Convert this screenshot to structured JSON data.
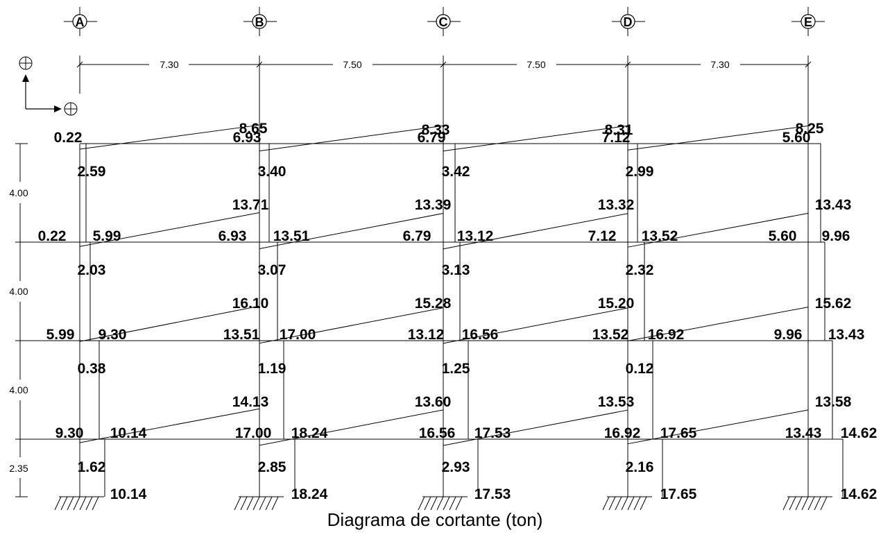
{
  "axes": [
    "A",
    "B",
    "C",
    "D",
    "E"
  ],
  "spans": [
    "7.30",
    "7.50",
    "7.50",
    "7.30"
  ],
  "story_heights": [
    "4.00",
    "4.00",
    "4.00",
    "2.35"
  ],
  "caption": "Diagrama de cortante (ton)",
  "beam_labels": {
    "top": [
      "8.65",
      "8.33",
      "8.31",
      "8.25"
    ],
    "bottom": [
      "2.59",
      "3.40",
      "3.42",
      "2.99",
      "2.03",
      "3.07",
      "3.13",
      "2.32",
      "0.38",
      "1.19",
      "1.25",
      "0.12",
      "1.62",
      "2.85",
      "2.93",
      "2.16"
    ],
    "top_lower_levels": [
      "13.71",
      "13.39",
      "13.32",
      "13.43",
      "16.10",
      "15.28",
      "15.20",
      "15.62",
      "14.13",
      "13.60",
      "13.53",
      "13.58"
    ]
  },
  "column_labels": {
    "level_roof": [
      "0.22",
      "6.93",
      "6.79",
      "7.12",
      "5.60"
    ],
    "level_3": [
      "0.22",
      "5.99",
      "6.93",
      "13.51",
      "6.79",
      "13.12",
      "7.12",
      "13.52",
      "5.60",
      "9.96"
    ],
    "level_2": [
      "5.99",
      "9.30",
      "13.51",
      "17.00",
      "13.12",
      "16.56",
      "13.52",
      "16.92",
      "9.96",
      "13.43"
    ],
    "level_1": [
      "9.30",
      "10.14",
      "17.00",
      "18.24",
      "16.56",
      "17.53",
      "16.92",
      "17.65",
      "13.43",
      "14.62"
    ],
    "base": [
      "10.14",
      "18.24",
      "17.53",
      "17.65",
      "14.62"
    ]
  },
  "chart_data": {
    "type": "shear_diagram",
    "title": "Diagrama de cortante (ton)",
    "unit": "ton",
    "axes": [
      "A",
      "B",
      "C",
      "D",
      "E"
    ],
    "spans_m": [
      7.3,
      7.5,
      7.5,
      7.3
    ],
    "story_heights_m": [
      4.0,
      4.0,
      4.0,
      2.35
    ],
    "beams": [
      {
        "level": "roof",
        "spans": [
          {
            "left": -2.59,
            "right": 8.65
          },
          {
            "left": -3.4,
            "right": 8.33
          },
          {
            "left": -3.42,
            "right": 8.31
          },
          {
            "left": -2.99,
            "right": 8.25
          }
        ]
      },
      {
        "level": "3",
        "spans": [
          {
            "left": -2.03,
            "right": 13.71
          },
          {
            "left": -3.07,
            "right": 13.39
          },
          {
            "left": -3.13,
            "right": 13.32
          },
          {
            "left": -2.32,
            "right": 13.43
          }
        ]
      },
      {
        "level": "2",
        "spans": [
          {
            "left": -0.38,
            "right": 16.1
          },
          {
            "left": -1.19,
            "right": 15.28
          },
          {
            "left": -1.25,
            "right": 15.2
          },
          {
            "left": -0.12,
            "right": 15.62
          }
        ]
      },
      {
        "level": "1",
        "spans": [
          {
            "left": -1.62,
            "right": 14.13
          },
          {
            "left": -2.85,
            "right": 13.6
          },
          {
            "left": -2.93,
            "right": 13.53
          },
          {
            "left": -2.16,
            "right": 13.58
          }
        ]
      }
    ],
    "columns": [
      {
        "axis": "A",
        "stories": [
          0.22,
          5.99,
          9.3,
          10.14
        ]
      },
      {
        "axis": "B",
        "stories": [
          6.93,
          13.51,
          17.0,
          18.24
        ]
      },
      {
        "axis": "C",
        "stories": [
          6.79,
          13.12,
          16.56,
          17.53
        ]
      },
      {
        "axis": "D",
        "stories": [
          7.12,
          13.52,
          16.92,
          17.65
        ]
      },
      {
        "axis": "E",
        "stories": [
          5.6,
          9.96,
          13.43,
          14.62
        ]
      }
    ]
  }
}
